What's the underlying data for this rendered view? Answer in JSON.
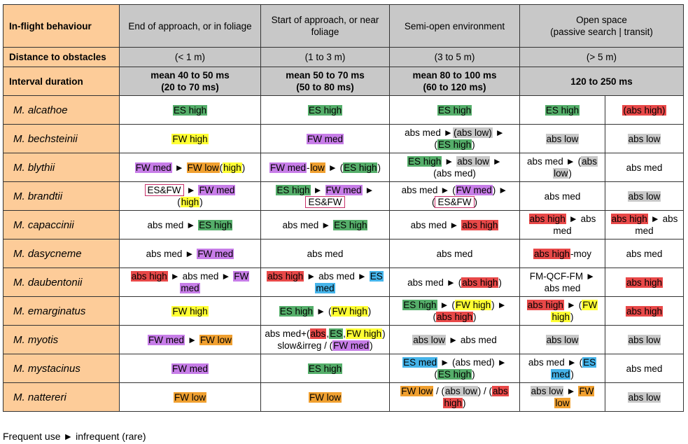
{
  "header": {
    "behaviour_label": "In-flight behaviour",
    "distance_label": "Distance to obstacles",
    "interval_label": "Interval duration",
    "columns": [
      {
        "title": "End of approach, or in foliage",
        "distance": "(< 1 m)",
        "interval_l1": "mean 40 to 50 ms",
        "interval_l2": "(20 to 70 ms)"
      },
      {
        "title": "Start of approach, or near foliage",
        "distance": "(1 to 3 m)",
        "interval_l1": "mean 50 to 70 ms",
        "interval_l2": "(50 to 80 ms)"
      },
      {
        "title": "Semi-open environment",
        "distance": "(3 to 5 m)",
        "interval_l1": "mean 80 to 100 ms",
        "interval_l2": "(60 to 120 ms)"
      },
      {
        "title_l1": "Open space",
        "title_l2": "(passive search | transit)",
        "distance": "(> 5 m)",
        "interval_l1": "120 to 250 ms"
      }
    ]
  },
  "rows": [
    {
      "species": "M. alcathoe",
      "cells": [
        [
          {
            "t": "ES high",
            "c": "es"
          }
        ],
        [
          {
            "t": "ES high",
            "c": "es"
          }
        ],
        [
          {
            "t": "ES high",
            "c": "es"
          }
        ],
        [
          {
            "t": "ES high",
            "c": "es"
          }
        ],
        [
          {
            "t": "(abs high)",
            "c": "ab"
          }
        ]
      ]
    },
    {
      "species": "M. bechsteinii",
      "cells": [
        [
          {
            "t": "FW high",
            "c": "fw"
          }
        ],
        [
          {
            "t": "FW med",
            "c": "fwm"
          }
        ],
        [
          {
            "t": "abs med ►"
          },
          {
            "t": "(abs low)",
            "c": "al"
          },
          {
            "t": " ► "
          },
          {
            "br": true
          },
          {
            "t": "("
          },
          {
            "t": "ES high",
            "c": "es"
          },
          {
            "t": ")"
          }
        ],
        [
          {
            "t": "abs low",
            "c": "al"
          }
        ],
        [
          {
            "t": "abs low",
            "c": "al"
          }
        ]
      ]
    },
    {
      "species": "M. blythii",
      "cells": [
        [
          {
            "t": "FW med",
            "c": "fwm"
          },
          {
            "t": " ► "
          },
          {
            "t": "FW low",
            "c": "fwo"
          },
          {
            "t": "("
          },
          {
            "t": "high",
            "c": "fw"
          },
          {
            "t": ")"
          }
        ],
        [
          {
            "t": "FW med",
            "c": "fwm"
          },
          {
            "t": "-"
          },
          {
            "t": "low",
            "c": "fwo"
          },
          {
            "t": " ► ("
          },
          {
            "t": "ES high",
            "c": "es"
          },
          {
            "t": ")"
          }
        ],
        [
          {
            "t": "ES high",
            "c": "es"
          },
          {
            "t": " ► "
          },
          {
            "t": "abs low",
            "c": "al"
          },
          {
            "t": " ►"
          },
          {
            "br": true
          },
          {
            "t": "(abs med)"
          }
        ],
        [
          {
            "t": "abs med ► ("
          },
          {
            "t": "abs",
            "c": "al"
          },
          {
            "br": true
          },
          {
            "t": "low",
            "c": "al"
          },
          {
            "t": ")"
          }
        ],
        [
          {
            "t": "abs med"
          }
        ]
      ]
    },
    {
      "species": "M. brandtii",
      "cells": [
        [
          {
            "t": "ES&FW",
            "c": "box"
          },
          {
            "t": " ► "
          },
          {
            "t": "FW med",
            "c": "fwm"
          },
          {
            "br": true
          },
          {
            "t": "("
          },
          {
            "t": "high",
            "c": "fw"
          },
          {
            "t": ")"
          }
        ],
        [
          {
            "t": "ES high",
            "c": "es"
          },
          {
            "t": " ► "
          },
          {
            "t": "FW med",
            "c": "fwm"
          },
          {
            "t": " ►"
          },
          {
            "br": true
          },
          {
            "t": "ES&FW",
            "c": "box"
          }
        ],
        [
          {
            "t": "abs med ► ("
          },
          {
            "t": "FW med",
            "c": "fwm"
          },
          {
            "t": ") ►"
          },
          {
            "br": true
          },
          {
            "t": "("
          },
          {
            "t": "ES&FW",
            "c": "box"
          },
          {
            "t": ")"
          }
        ],
        [
          {
            "t": "abs med"
          }
        ],
        [
          {
            "t": "abs low",
            "c": "al"
          }
        ]
      ]
    },
    {
      "species": "M. capaccinii",
      "cells": [
        [
          {
            "t": "abs med ► "
          },
          {
            "t": "ES high",
            "c": "es"
          }
        ],
        [
          {
            "t": "abs med ► "
          },
          {
            "t": "ES high",
            "c": "es"
          }
        ],
        [
          {
            "t": "abs med ► "
          },
          {
            "t": "abs high",
            "c": "ab"
          }
        ],
        [
          {
            "t": "abs high",
            "c": "ab"
          },
          {
            "t": " ► abs"
          },
          {
            "br": true
          },
          {
            "t": "med"
          }
        ],
        [
          {
            "t": "abs high",
            "c": "ab"
          },
          {
            "t": " ► abs"
          },
          {
            "br": true
          },
          {
            "t": "med"
          }
        ]
      ]
    },
    {
      "species": "M. dasycneme",
      "cells": [
        [
          {
            "t": "abs med ► "
          },
          {
            "t": "FW med",
            "c": "fwm"
          }
        ],
        [
          {
            "t": "abs med"
          }
        ],
        [
          {
            "t": "abs med"
          }
        ],
        [
          {
            "t": "abs high",
            "c": "ab"
          },
          {
            "t": "-moy"
          }
        ],
        [
          {
            "t": "abs med"
          }
        ]
      ]
    },
    {
      "species": "M. daubentonii",
      "cells": [
        [
          {
            "t": "abs high",
            "c": "ab"
          },
          {
            "t": " ► abs med ► "
          },
          {
            "t": "FW",
            "c": "fwm"
          },
          {
            "br": true
          },
          {
            "t": "med",
            "c": "fwm"
          }
        ],
        [
          {
            "t": "abs high",
            "c": "ab"
          },
          {
            "t": " ► abs med ► "
          },
          {
            "t": "ES",
            "c": "esb"
          },
          {
            "br": true
          },
          {
            "t": "med",
            "c": "esb"
          }
        ],
        [
          {
            "t": "abs med ► ("
          },
          {
            "t": "abs high",
            "c": "ab"
          },
          {
            "t": ")"
          }
        ],
        [
          {
            "t": "FM-QCF-FM  ►"
          },
          {
            "br": true
          },
          {
            "t": "abs med"
          }
        ],
        [
          {
            "t": "abs high",
            "c": "ab"
          }
        ]
      ]
    },
    {
      "species": "M. emarginatus",
      "cells": [
        [
          {
            "t": "FW high",
            "c": "fw"
          }
        ],
        [
          {
            "t": "ES high",
            "c": "es"
          },
          {
            "t": " ► ("
          },
          {
            "t": "FW high",
            "c": "fw"
          },
          {
            "t": ")"
          }
        ],
        [
          {
            "t": "ES high",
            "c": "es"
          },
          {
            "t": " ► ("
          },
          {
            "t": "FW high",
            "c": "fw"
          },
          {
            "t": ") ►"
          },
          {
            "br": true
          },
          {
            "t": "("
          },
          {
            "t": "abs high",
            "c": "ab"
          },
          {
            "t": ")"
          }
        ],
        [
          {
            "t": "abs high",
            "c": "ab"
          },
          {
            "t": " ► ("
          },
          {
            "t": "FW",
            "c": "fw"
          },
          {
            "br": true
          },
          {
            "t": "high",
            "c": "fw"
          },
          {
            "t": ")"
          }
        ],
        [
          {
            "t": "abs high",
            "c": "ab"
          }
        ]
      ]
    },
    {
      "species": "M. myotis",
      "cells": [
        [
          {
            "t": "FW med",
            "c": "fwm"
          },
          {
            "t": " ► "
          },
          {
            "t": "FW low",
            "c": "fwo"
          }
        ],
        [
          {
            "t": "abs med+("
          },
          {
            "t": "abs",
            "c": "ab"
          },
          {
            "t": ","
          },
          {
            "t": "ES",
            "c": "es"
          },
          {
            "t": ","
          },
          {
            "t": "FW high",
            "c": "fw"
          },
          {
            "t": ")"
          },
          {
            "br": true
          },
          {
            "t": "slow&irreg / ("
          },
          {
            "t": "FW med",
            "c": "fwm"
          },
          {
            "t": ")"
          }
        ],
        [
          {
            "t": "abs low",
            "c": "al"
          },
          {
            "t": " ► abs med"
          }
        ],
        [
          {
            "t": "abs low",
            "c": "al"
          }
        ],
        [
          {
            "t": "abs low",
            "c": "al"
          }
        ]
      ]
    },
    {
      "species": "M. mystacinus",
      "cells": [
        [
          {
            "t": "FW med",
            "c": "fwm"
          }
        ],
        [
          {
            "t": "ES high",
            "c": "es"
          }
        ],
        [
          {
            "t": "ES med",
            "c": "esb"
          },
          {
            "t": " ► (abs med) ►"
          },
          {
            "br": true
          },
          {
            "t": "("
          },
          {
            "t": "ES high",
            "c": "es"
          },
          {
            "t": ")"
          }
        ],
        [
          {
            "t": "abs med ► ("
          },
          {
            "t": "ES",
            "c": "esb"
          },
          {
            "br": true
          },
          {
            "t": "med",
            "c": "esb"
          },
          {
            "t": ")"
          }
        ],
        [
          {
            "t": "abs med"
          }
        ]
      ]
    },
    {
      "species": "M. nattereri",
      "cells": [
        [
          {
            "t": "FW low",
            "c": "fwo"
          }
        ],
        [
          {
            "t": "FW low",
            "c": "fwo"
          }
        ],
        [
          {
            "t": "FW low",
            "c": "fwo"
          },
          {
            "t": "  / ("
          },
          {
            "t": "abs low",
            "c": "al"
          },
          {
            "t": ")  / ("
          },
          {
            "t": "abs",
            "c": "ab"
          },
          {
            "br": true
          },
          {
            "t": "high",
            "c": "ab"
          },
          {
            "t": ")"
          }
        ],
        [
          {
            "t": "abs low",
            "c": "al"
          },
          {
            "t": " ► "
          },
          {
            "t": "FW",
            "c": "fwo"
          },
          {
            "br": true
          },
          {
            "t": "low",
            "c": "fwo"
          }
        ],
        [
          {
            "t": "abs low",
            "c": "al"
          }
        ]
      ]
    }
  ],
  "footer": "Frequent use ► infrequent (rare)",
  "colors": {
    "header_grey": "#c8c8c8",
    "species_orange": "#fdcc99",
    "es_green": "#55ae6a",
    "fw_yellow": "#ffff33",
    "fw_purple": "#c77de8",
    "fw_orange": "#f0a030",
    "abs_red": "#e84848",
    "abs_grey": "#c8c8c8",
    "es_blue": "#45b4ea",
    "box_border": "#c8306a"
  }
}
